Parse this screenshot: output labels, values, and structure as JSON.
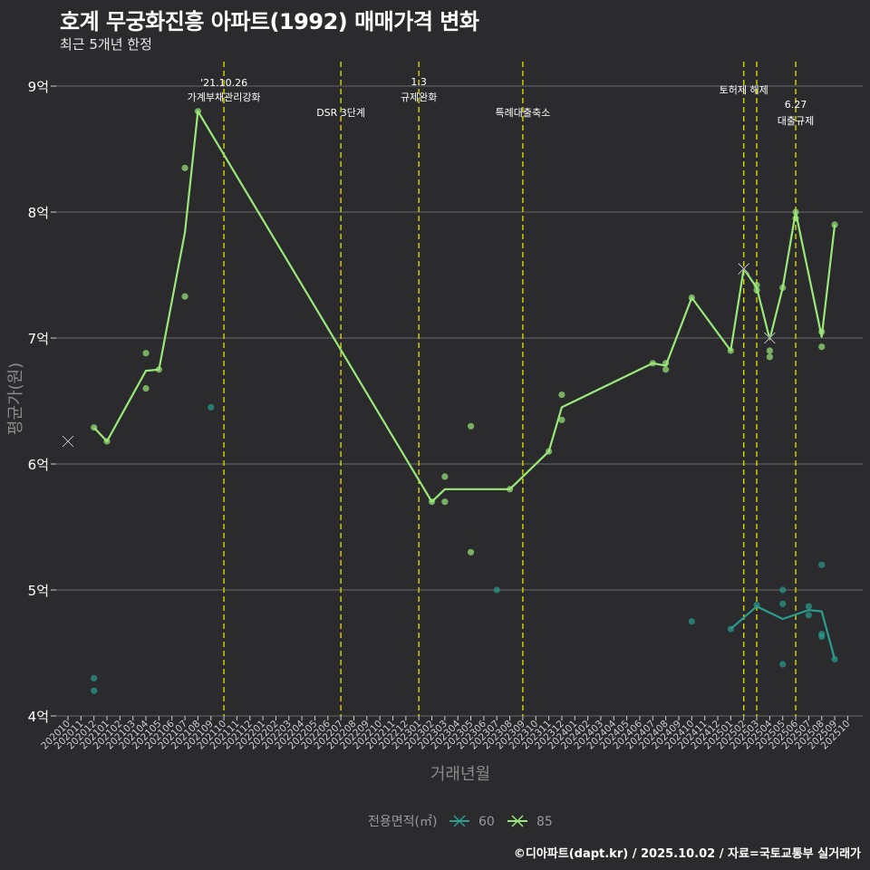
{
  "title": "호계 무궁화진흥 아파트(1992) 매매가격 변화",
  "subtitle": "최근 5개년 한정",
  "caption": "©디아파트(dapt.kr) / 2025.10.02 / 자료=국토교통부 실거래가",
  "chart_data": {
    "type": "line",
    "xlabel": "거래년월",
    "ylabel": "평균가(원)",
    "ylim": [
      4,
      9.2
    ],
    "yticks": [
      {
        "value": 4,
        "label": "4억"
      },
      {
        "value": 5,
        "label": "5억"
      },
      {
        "value": 6,
        "label": "6억"
      },
      {
        "value": 7,
        "label": "7억"
      },
      {
        "value": 8,
        "label": "8억"
      },
      {
        "value": 9,
        "label": "9억"
      }
    ],
    "x_categories": [
      "202010",
      "202011",
      "202012",
      "202101",
      "202102",
      "202103",
      "202104",
      "202105",
      "202106",
      "202107",
      "202108",
      "202109",
      "202110",
      "202111",
      "202112",
      "202201",
      "202202",
      "202203",
      "202204",
      "202205",
      "202206",
      "202207",
      "202208",
      "202209",
      "202210",
      "202211",
      "202212",
      "202301",
      "202302",
      "202303",
      "202304",
      "202305",
      "202306",
      "202307",
      "202308",
      "202309",
      "202310",
      "202311",
      "202312",
      "202401",
      "202402",
      "202403",
      "202404",
      "202405",
      "202406",
      "202407",
      "202408",
      "202409",
      "202410",
      "202411",
      "202412",
      "202501",
      "202502",
      "202503",
      "202504",
      "202505",
      "202506",
      "202507",
      "202508",
      "202509",
      "202510"
    ],
    "legend": {
      "title": "전용면적(㎡)",
      "position": "bottom"
    },
    "series": [
      {
        "name": "60",
        "color": "#2a9d8f",
        "line": [
          [
            "202501",
            4.69
          ],
          [
            "202503",
            4.87
          ],
          [
            "202505",
            4.77
          ],
          [
            "202507",
            4.84
          ],
          [
            "202508",
            4.83
          ],
          [
            "202509",
            4.45
          ]
        ],
        "points": [
          [
            "202012",
            4.3
          ],
          [
            "202012",
            4.2
          ],
          [
            "202109",
            6.45
          ],
          [
            "202307",
            5.0
          ],
          [
            "202410",
            4.75
          ],
          [
            "202501",
            4.69
          ],
          [
            "202503",
            4.88
          ],
          [
            "202505",
            5.0
          ],
          [
            "202505",
            4.89
          ],
          [
            "202505",
            4.41
          ],
          [
            "202507",
            4.87
          ],
          [
            "202507",
            4.8
          ],
          [
            "202508",
            5.2
          ],
          [
            "202508",
            4.65
          ],
          [
            "202508",
            4.63
          ],
          [
            "202509",
            4.45
          ]
        ],
        "crosses": []
      },
      {
        "name": "85",
        "color": "#9be87a",
        "line": [
          [
            "202012",
            6.29
          ],
          [
            "202101",
            6.18
          ],
          [
            "202104",
            6.74
          ],
          [
            "202105",
            6.75
          ],
          [
            "202107",
            7.84
          ],
          [
            "202108",
            8.8
          ],
          [
            "202302",
            5.7
          ],
          [
            "202303",
            5.8
          ],
          [
            "202308",
            5.8
          ],
          [
            "202311",
            6.1
          ],
          [
            "202312",
            6.45
          ],
          [
            "202407",
            6.8
          ],
          [
            "202408",
            6.78
          ],
          [
            "202410",
            7.32
          ],
          [
            "202501",
            6.9
          ],
          [
            "202502",
            7.55
          ],
          [
            "202503",
            7.4
          ],
          [
            "202504",
            6.99
          ],
          [
            "202505",
            7.4
          ],
          [
            "202506",
            8.0
          ],
          [
            "202508",
            7.01
          ],
          [
            "202509",
            7.9
          ]
        ],
        "points": [
          [
            "202012",
            6.29
          ],
          [
            "202101",
            6.18
          ],
          [
            "202104",
            6.88
          ],
          [
            "202104",
            6.6
          ],
          [
            "202105",
            6.75
          ],
          [
            "202107",
            8.35
          ],
          [
            "202107",
            7.33
          ],
          [
            "202108",
            8.8
          ],
          [
            "202302",
            5.7
          ],
          [
            "202303",
            5.9
          ],
          [
            "202303",
            5.7
          ],
          [
            "202305",
            6.3
          ],
          [
            "202305",
            5.3
          ],
          [
            "202308",
            5.8
          ],
          [
            "202311",
            6.1
          ],
          [
            "202312",
            6.55
          ],
          [
            "202312",
            6.35
          ],
          [
            "202407",
            6.8
          ],
          [
            "202408",
            6.8
          ],
          [
            "202408",
            6.75
          ],
          [
            "202410",
            7.32
          ],
          [
            "202501",
            6.9
          ],
          [
            "202503",
            7.42
          ],
          [
            "202503",
            7.38
          ],
          [
            "202504",
            6.9
          ],
          [
            "202504",
            6.85
          ],
          [
            "202505",
            7.4
          ],
          [
            "202506",
            8.0
          ],
          [
            "202506",
            7.95
          ],
          [
            "202508",
            7.05
          ],
          [
            "202508",
            6.93
          ],
          [
            "202509",
            7.9
          ]
        ],
        "crosses": [
          [
            "202010",
            6.18
          ],
          [
            "202502",
            7.55
          ],
          [
            "202504",
            7.0
          ]
        ]
      }
    ],
    "events": [
      {
        "x": "202110",
        "line1": "'21.10.26",
        "line2": "가계부채관리강화"
      },
      {
        "x": "202207",
        "line1": "",
        "line2": "DSR 3단계"
      },
      {
        "x": "202301",
        "line1": "1.3",
        "line2": "규제완화"
      },
      {
        "x": "202309",
        "line1": "",
        "line2": "특례대출축소"
      },
      {
        "x": "202502",
        "line1": "",
        "line2": "토허제 해제"
      },
      {
        "x": "202503",
        "line1": "",
        "line2": ""
      },
      {
        "x": "202506",
        "line1": "6.27",
        "line2": "대출규제"
      }
    ]
  }
}
